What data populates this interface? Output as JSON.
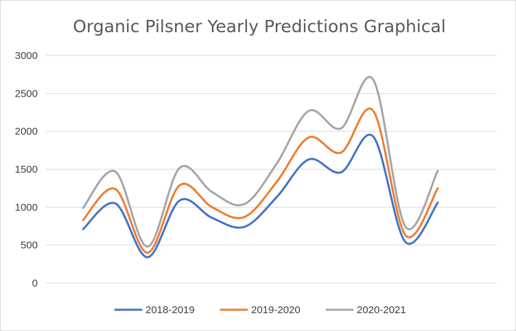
{
  "chart_data": {
    "type": "line",
    "title": "Organic Pilsner Yearly Predictions Graphical",
    "xlabel": "",
    "ylabel": "",
    "ylim": [
      0,
      3000
    ],
    "y_ticks": [
      0,
      500,
      1000,
      1500,
      2000,
      2500,
      3000
    ],
    "y_tick_labels": [
      "0",
      "500",
      "1000",
      "1500",
      "2000",
      "2500",
      "3000"
    ],
    "smooth": true,
    "grid": true,
    "legend_position": "bottom",
    "series": [
      {
        "name": "2018-2019",
        "color": "#4472C4",
        "values": [
          710,
          1050,
          340,
          1090,
          860,
          740,
          1130,
          1630,
          1460,
          1930,
          540,
          1060
        ]
      },
      {
        "name": "2019-2020",
        "color": "#ED7D31",
        "values": [
          830,
          1240,
          400,
          1290,
          1000,
          870,
          1330,
          1920,
          1720,
          2270,
          630,
          1250
        ]
      },
      {
        "name": "2020-2021",
        "color": "#A5A5A5",
        "values": [
          990,
          1470,
          480,
          1520,
          1200,
          1040,
          1570,
          2270,
          2040,
          2680,
          740,
          1480
        ]
      }
    ]
  }
}
